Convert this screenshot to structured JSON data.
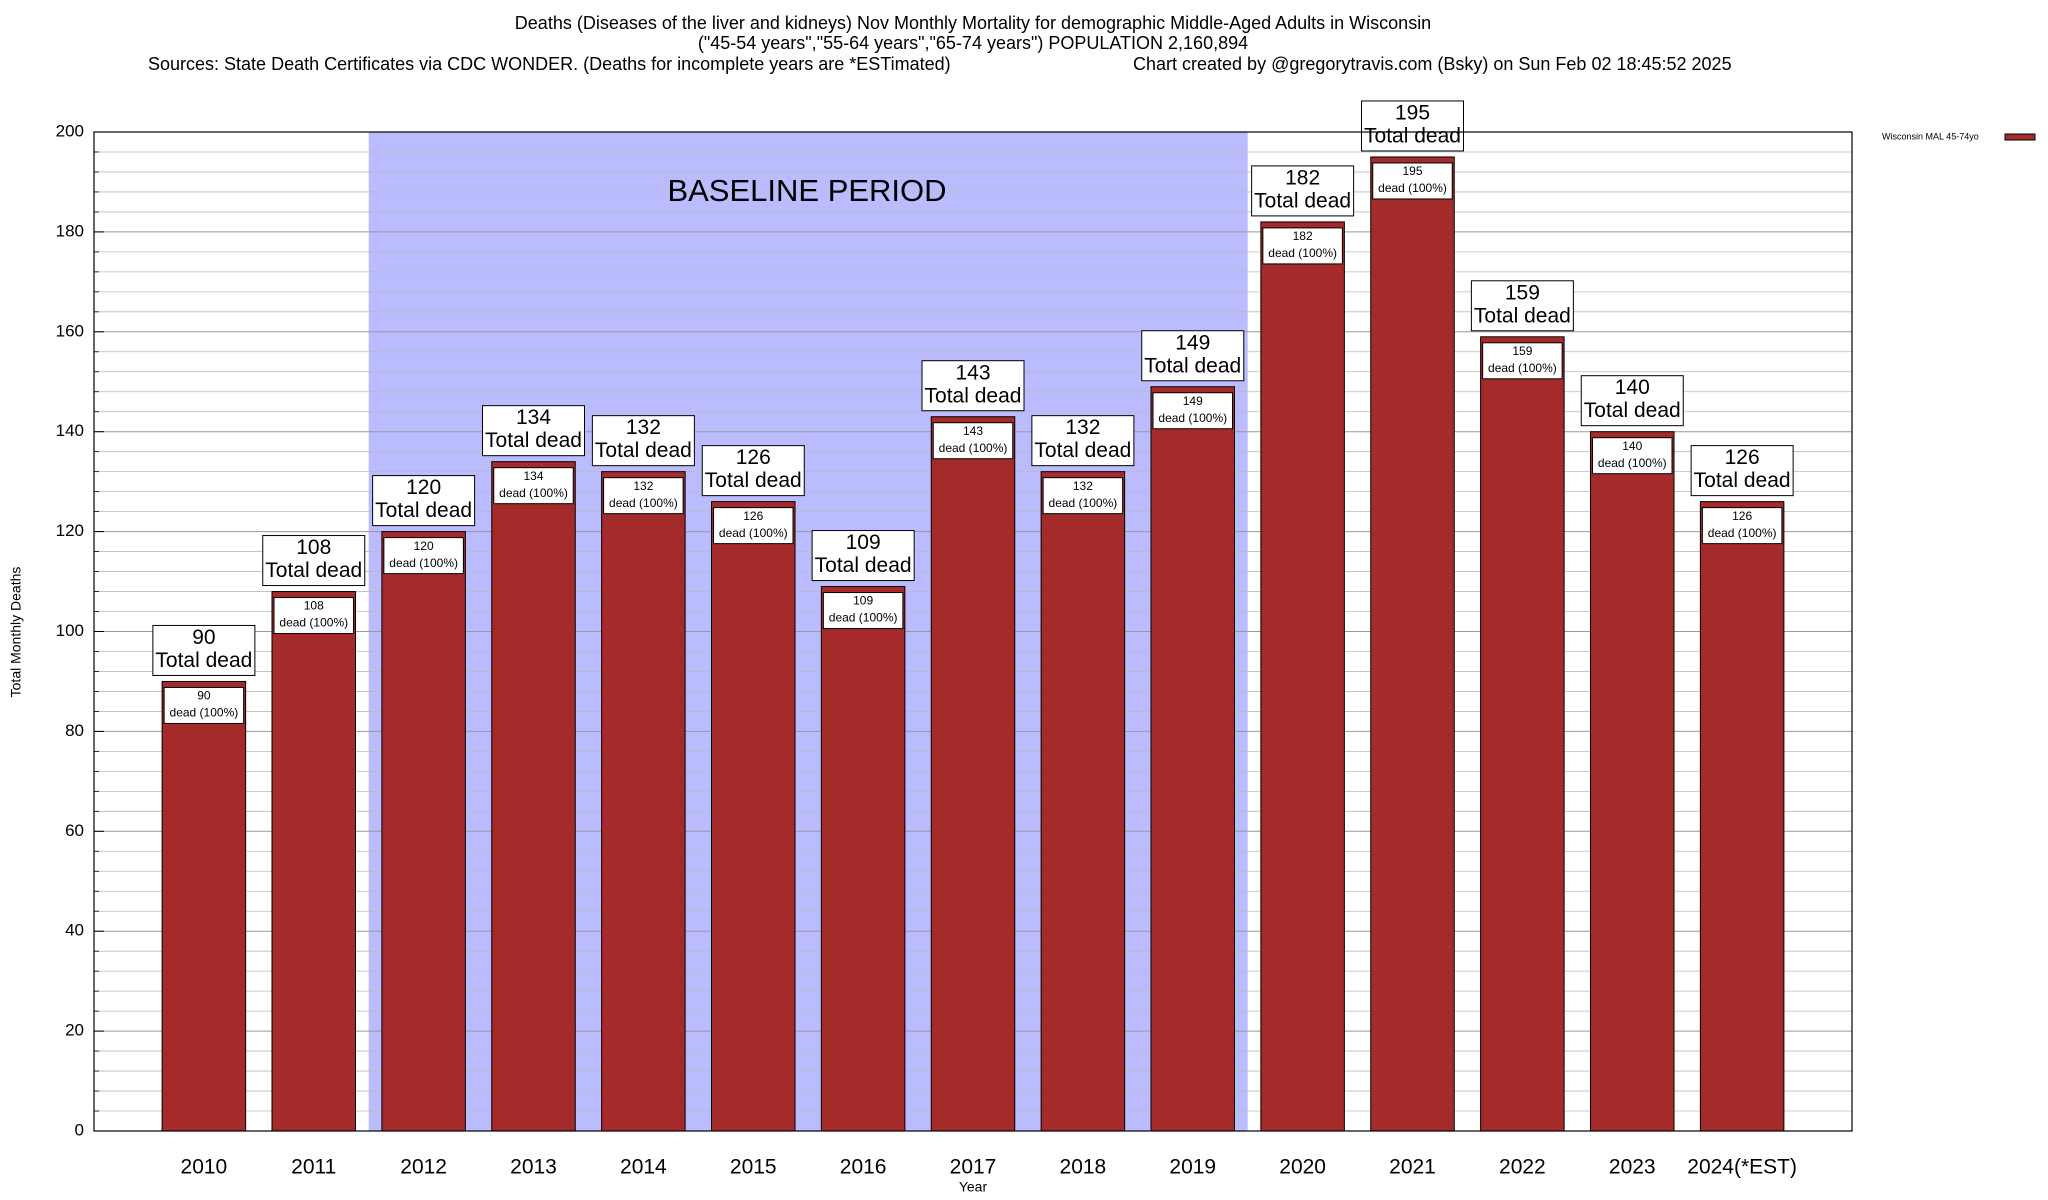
{
  "chart_data": {
    "type": "bar",
    "title": "Deaths (Diseases of the liver and kidneys) Nov Monthly Mortality for demographic Middle-Aged Adults in Wisconsin",
    "subtitle": "(\"45-54 years\",\"55-64 years\",\"65-74 years\") POPULATION 2,160,894",
    "source": "Sources: State Death Certificates via CDC WONDER. (Deaths for incomplete years are *ESTimated)",
    "credit": "Chart created by @gregorytravis.com (Bsky) on Sun Feb 02 18:45:52 2025",
    "x_label": "Year",
    "y_label": "Total Monthly Deaths",
    "categories": [
      "2010",
      "2011",
      "2012",
      "2013",
      "2014",
      "2015",
      "2016",
      "2017",
      "2018",
      "2019",
      "2020",
      "2021",
      "2022",
      "2023",
      "2024(*EST)"
    ],
    "series": [
      {
        "name": "Wisconsin MAL 45-74yo",
        "color": "#a52a2a",
        "values": [
          90,
          108,
          120,
          134,
          132,
          126,
          109,
          143,
          132,
          149,
          182,
          195,
          159,
          140,
          126
        ]
      }
    ],
    "total_label": "Total dead",
    "share_label": "dead (100%)",
    "baseline": {
      "label": "BASELINE PERIOD",
      "categories": [
        "2012",
        "2019"
      ],
      "color": "#bbbbff"
    },
    "ylim": [
      0,
      200
    ],
    "yticks": [
      0,
      20,
      40,
      60,
      80,
      100,
      120,
      140,
      160,
      180,
      200
    ],
    "grid": true
  }
}
